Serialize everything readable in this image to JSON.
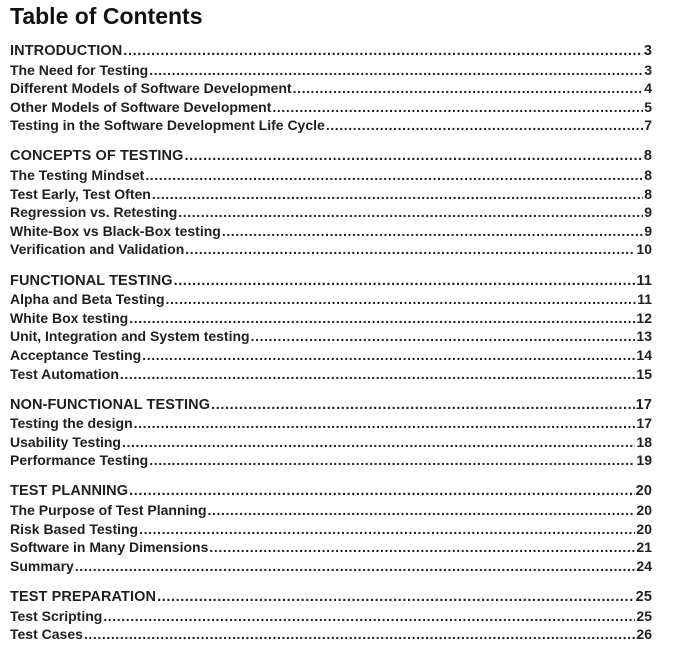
{
  "title": "Table of Contents",
  "sections": [
    {
      "heading": {
        "label": "INTRODUCTION",
        "page": "3"
      },
      "items": [
        {
          "label": "The Need for Testing",
          "page": "3"
        },
        {
          "label": "Different Models of Software Development",
          "page": "4"
        },
        {
          "label": "Other Models of Software Development",
          "page": "5"
        },
        {
          "label": "Testing in the Software Development Life Cycle",
          "page": "7"
        }
      ]
    },
    {
      "heading": {
        "label": "CONCEPTS OF TESTING",
        "page": "8"
      },
      "items": [
        {
          "label": "The Testing Mindset",
          "page": "8"
        },
        {
          "label": "Test Early, Test Often",
          "page": "8"
        },
        {
          "label": "Regression vs. Retesting",
          "page": "9"
        },
        {
          "label": "White-Box vs Black-Box testing",
          "page": "9"
        },
        {
          "label": "Verification and Validation",
          "page": "10"
        }
      ]
    },
    {
      "heading": {
        "label": "FUNCTIONAL TESTING",
        "page": "11"
      },
      "items": [
        {
          "label": "Alpha and Beta Testing",
          "page": "11"
        },
        {
          "label": "White Box testing",
          "page": "12"
        },
        {
          "label": "Unit, Integration and System testing",
          "page": "13"
        },
        {
          "label": "Acceptance Testing",
          "page": "14"
        },
        {
          "label": "Test Automation",
          "page": "15"
        }
      ]
    },
    {
      "heading": {
        "label": "NON-FUNCTIONAL TESTING",
        "page": "17"
      },
      "items": [
        {
          "label": "Testing the design",
          "page": "17"
        },
        {
          "label": "Usability Testing",
          "page": "18"
        },
        {
          "label": "Performance Testing",
          "page": "19"
        }
      ]
    },
    {
      "heading": {
        "label": "TEST PLANNING",
        "page": "20"
      },
      "items": [
        {
          "label": "The Purpose of Test Planning",
          "page": "20"
        },
        {
          "label": "Risk Based Testing",
          "page": "20"
        },
        {
          "label": "Software in Many Dimensions",
          "page": "21"
        },
        {
          "label": "Summary",
          "page": "24"
        }
      ]
    },
    {
      "heading": {
        "label": "TEST PREPARATION",
        "page": "25"
      },
      "items": [
        {
          "label": "Test Scripting",
          "page": "25"
        },
        {
          "label": "Test Cases",
          "page": "26"
        }
      ]
    }
  ]
}
